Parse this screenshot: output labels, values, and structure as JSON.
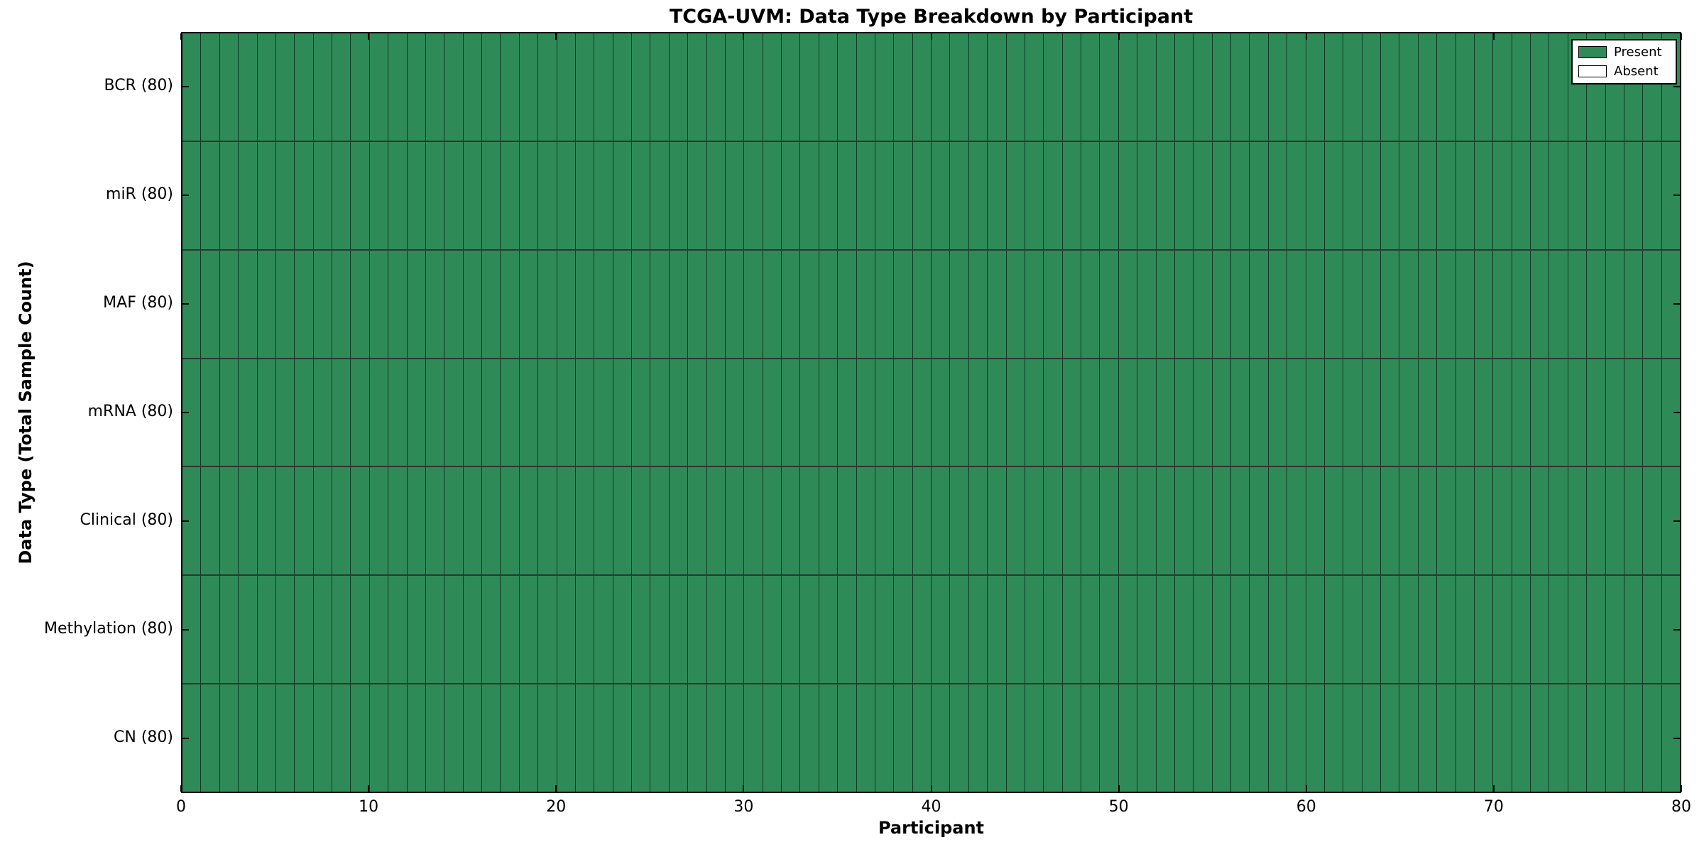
{
  "figure": {
    "background_color": "#ffffff",
    "frame_color": "#000000"
  },
  "chart_data": {
    "type": "heatmap",
    "title": "TCGA-UVM: Data Type Breakdown by Participant",
    "xlabel": "Participant",
    "ylabel": "Data Type (Total Sample Count)",
    "xlim": [
      0,
      80
    ],
    "x_ticks": [
      0,
      10,
      20,
      30,
      40,
      50,
      60,
      70,
      80
    ],
    "n_participants": 80,
    "grid": "cell-borders",
    "categories": [
      "BCR (80)",
      "miR (80)",
      "MAF (80)",
      "mRNA (80)",
      "Clinical (80)",
      "Methylation (80)",
      "CN (80)"
    ],
    "series": [
      {
        "name": "BCR (80)",
        "total": 80,
        "present_count": 80,
        "absent_count": 0
      },
      {
        "name": "miR (80)",
        "total": 80,
        "present_count": 80,
        "absent_count": 0
      },
      {
        "name": "MAF (80)",
        "total": 80,
        "present_count": 80,
        "absent_count": 0
      },
      {
        "name": "mRNA (80)",
        "total": 80,
        "present_count": 80,
        "absent_count": 0
      },
      {
        "name": "Clinical (80)",
        "total": 80,
        "present_count": 80,
        "absent_count": 0
      },
      {
        "name": "Methylation (80)",
        "total": 80,
        "present_count": 80,
        "absent_count": 0
      },
      {
        "name": "CN (80)",
        "total": 80,
        "present_count": 80,
        "absent_count": 0
      }
    ],
    "legend": {
      "position": "upper right",
      "entries": [
        {
          "label": "Present",
          "color": "#2e8b57"
        },
        {
          "label": "Absent",
          "color": "#ffffff"
        }
      ]
    },
    "colors": {
      "present": "#2e8b57",
      "absent": "#ffffff",
      "cell_edge": "#000000"
    }
  }
}
